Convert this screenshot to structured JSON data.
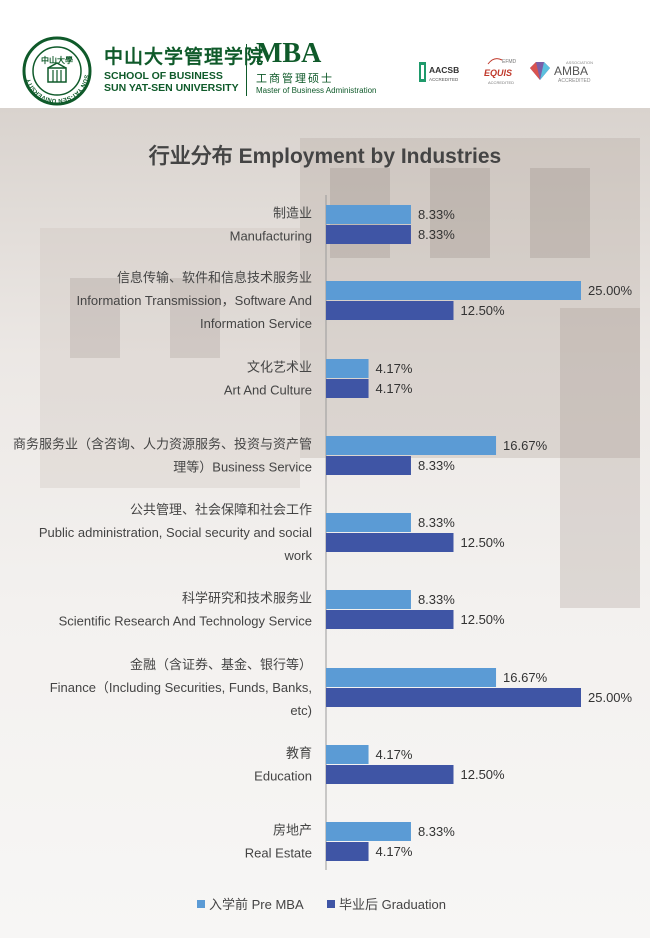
{
  "header": {
    "school_cn": "中山大学管理学院",
    "school_en_1": "SCHOOL OF BUSINESS",
    "school_en_2": "SUN YAT-SEN UNIVERSITY",
    "mba": "MBA",
    "mba_cn": "工商管理硕士",
    "mba_en": "Master of Business Administration",
    "seal_top": "中山大學",
    "seal_ring": "SUN YAT-SEN UNIVERSITY",
    "accreditations": {
      "aacsb": "AACSB",
      "aacsb_sub": "ACCREDITED",
      "efmd": "EFMD",
      "equis": "EQUIS",
      "equis_sub": "ACCREDITED",
      "amba": "AMBA",
      "amba_top": "ASSOCIATION",
      "amba_sub": "ACCREDITED"
    }
  },
  "chart_data": {
    "type": "bar",
    "orientation": "horizontal",
    "title": "行业分布  Employment by Industries",
    "categories": [
      {
        "cn": "制造业",
        "en": [
          "Manufacturing"
        ]
      },
      {
        "cn": "信息传输、软件和信息技术服务业",
        "en": [
          "Information Transmission，Software And",
          "Information Service"
        ]
      },
      {
        "cn": "文化艺术业",
        "en": [
          "Art And Culture"
        ]
      },
      {
        "cn": "商务服务业（含咨询、人力资源服务、投资与资产管",
        "en": [
          "理等）Business Service"
        ]
      },
      {
        "cn": "公共管理、社会保障和社会工作",
        "en": [
          "Public administration, Social security and social",
          "work"
        ]
      },
      {
        "cn": "科学研究和技术服务业",
        "en": [
          "Scientific Research And Technology Service"
        ]
      },
      {
        "cn": "金融（含证券、基金、银行等）",
        "en": [
          "Finance（Including Securities, Funds, Banks,",
          "etc)"
        ]
      },
      {
        "cn": "教育",
        "en": [
          "Education"
        ]
      },
      {
        "cn": "房地产",
        "en": [
          "Real Estate"
        ]
      }
    ],
    "series": [
      {
        "name": "入学前 Pre MBA",
        "color": "#5b9bd5",
        "values": [
          8.33,
          25.0,
          4.17,
          16.67,
          8.33,
          8.33,
          16.67,
          4.17,
          8.33
        ],
        "labels": [
          "8.33%",
          "25.00%",
          "4.17%",
          "16.67%",
          "8.33%",
          "8.33%",
          "16.67%",
          "4.17%",
          "8.33%"
        ]
      },
      {
        "name": "毕业后 Graduation",
        "color": "#3f55a5",
        "values": [
          8.33,
          12.5,
          4.17,
          8.33,
          12.5,
          12.5,
          25.0,
          12.5,
          4.17
        ],
        "labels": [
          "8.33%",
          "12.50%",
          "4.17%",
          "8.33%",
          "12.50%",
          "12.50%",
          "25.00%",
          "12.50%",
          "4.17%"
        ]
      }
    ],
    "xlim": [
      0,
      25
    ],
    "legend_position": "bottom",
    "grid": false
  }
}
